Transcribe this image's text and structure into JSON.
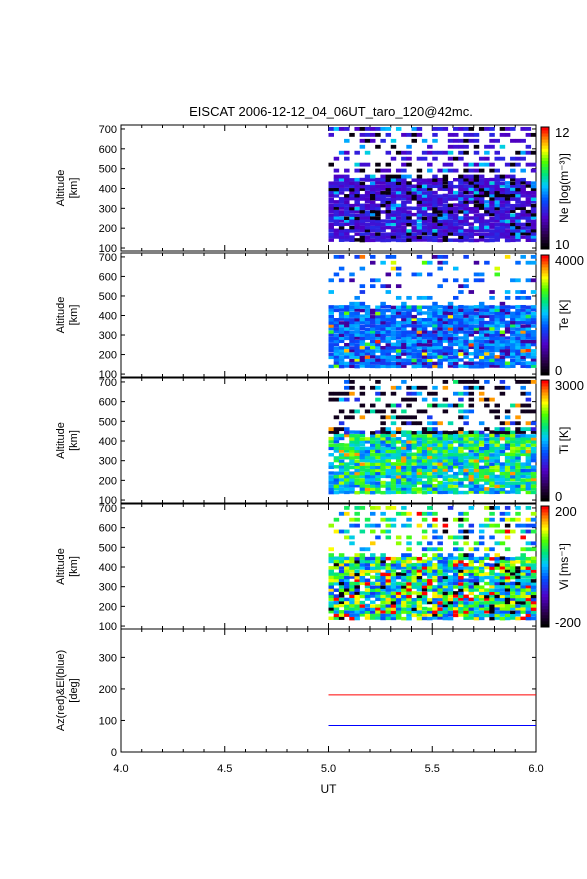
{
  "title": "EISCAT 2006-12-12_04_06UT_taro_120@42mc.",
  "chart_data": [
    {
      "type": "heatmap",
      "name": "ne",
      "ylabel": [
        "Altitude",
        "[km]"
      ],
      "y_ticks": [
        100,
        200,
        300,
        400,
        500,
        600,
        700
      ],
      "ylim": [
        85,
        720
      ],
      "xlim": [
        4.0,
        6.0
      ],
      "data_xrange": [
        5.0,
        6.0
      ],
      "colorbar": {
        "label": "Ne [log(m⁻³)]",
        "max": "12",
        "min": "10",
        "scheme": "rainbow-black-low"
      },
      "value_range": [
        10,
        12
      ],
      "profile": "ne"
    },
    {
      "type": "heatmap",
      "name": "te",
      "ylabel": [
        "Altitude",
        "[km]"
      ],
      "y_ticks": [
        100,
        200,
        300,
        400,
        500,
        600,
        700
      ],
      "ylim": [
        85,
        720
      ],
      "xlim": [
        4.0,
        6.0
      ],
      "data_xrange": [
        5.0,
        6.0
      ],
      "colorbar": {
        "label": "Te [K]",
        "max": "4000",
        "min": "0",
        "scheme": "rainbow-black-low"
      },
      "value_range": [
        0,
        4000
      ],
      "profile": "te"
    },
    {
      "type": "heatmap",
      "name": "ti",
      "ylabel": [
        "Altitude",
        "[km]"
      ],
      "y_ticks": [
        100,
        200,
        300,
        400,
        500,
        600,
        700
      ],
      "ylim": [
        85,
        720
      ],
      "xlim": [
        4.0,
        6.0
      ],
      "data_xrange": [
        5.0,
        6.0
      ],
      "colorbar": {
        "label": "Ti [K]",
        "max": "3000",
        "min": "0",
        "scheme": "rainbow-black-low"
      },
      "value_range": [
        0,
        3000
      ],
      "profile": "ti"
    },
    {
      "type": "heatmap",
      "name": "vi",
      "ylabel": [
        "Altitude",
        "[km]"
      ],
      "y_ticks": [
        100,
        200,
        300,
        400,
        500,
        600,
        700
      ],
      "ylim": [
        85,
        720
      ],
      "xlim": [
        4.0,
        6.0
      ],
      "data_xrange": [
        5.0,
        6.0
      ],
      "colorbar": {
        "label": "Vi [ms⁻¹]",
        "max": "200",
        "min": "-200",
        "scheme": "rainbow-black-low"
      },
      "value_range": [
        -200,
        200
      ],
      "profile": "vi"
    },
    {
      "type": "line",
      "name": "azel",
      "ylabel": [
        "Az(red)&El(blue)",
        "[deg]"
      ],
      "y_ticks": [
        0,
        100,
        200,
        300
      ],
      "ylim": [
        0,
        390
      ],
      "xlim": [
        4.0,
        6.0
      ],
      "xlabel": "UT",
      "x_ticks": [
        "4.0",
        "4.5",
        "5.0",
        "5.5",
        "6.0"
      ],
      "series": [
        {
          "name": "Az",
          "color": "#ff0000",
          "x": [
            5.0,
            6.0
          ],
          "y": [
            181,
            181
          ]
        },
        {
          "name": "El",
          "color": "#0000ff",
          "x": [
            5.0,
            6.0
          ],
          "y": [
            84,
            84
          ]
        }
      ]
    }
  ]
}
